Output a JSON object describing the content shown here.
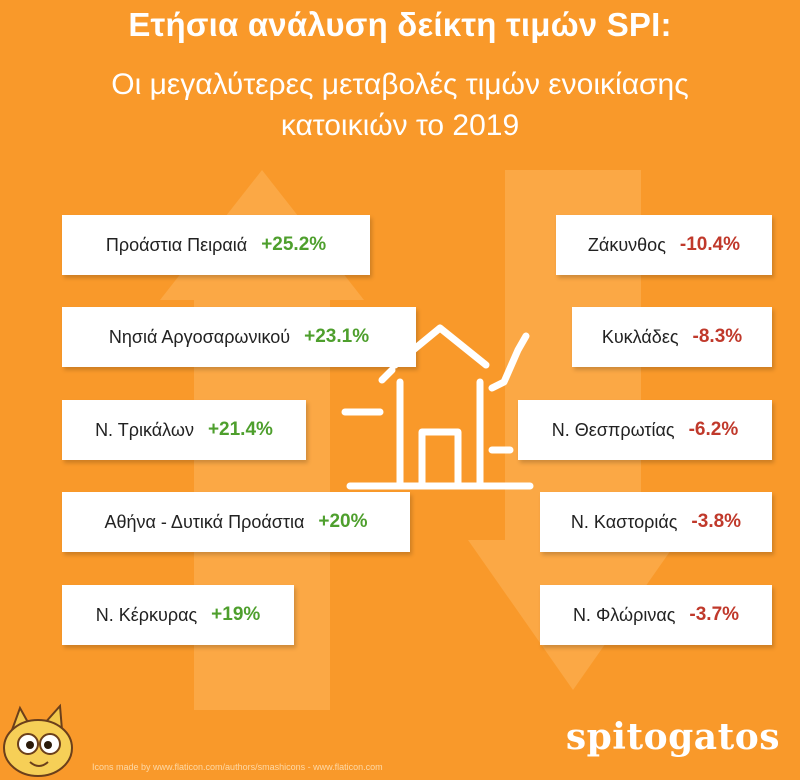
{
  "title": "Ετήσια ανάλυση δείκτη τιμών SPI:",
  "subtitle_line1": "Οι μεγαλύτερες μεταβολές τιμών ενοικίασης",
  "subtitle_line2": "κατοικιών το 2019",
  "increases": [
    {
      "name": "Προάστια Πειραιά",
      "change": "+25.2%"
    },
    {
      "name": "Νησιά Αργοσαρωνικού",
      "change": "+23.1%"
    },
    {
      "name": "Ν. Τρικάλων",
      "change": "+21.4%"
    },
    {
      "name": "Αθήνα - Δυτικά Προάστια",
      "change": "+20%"
    },
    {
      "name": "Ν. Κέρκυρας",
      "change": "+19%"
    }
  ],
  "decreases": [
    {
      "name": "Ζάκυνθος",
      "change": "-10.4%"
    },
    {
      "name": "Κυκλάδες",
      "change": "-8.3%"
    },
    {
      "name": "Ν. Θεσπρωτίας",
      "change": "-6.2%"
    },
    {
      "name": "Ν. Καστοριάς",
      "change": "-3.8%"
    },
    {
      "name": "Ν. Φλώρινας",
      "change": "-3.7%"
    }
  ],
  "brand": "spitogatos",
  "credit": "Icons made by www.flaticon.com/authors/smashicons - www.flaticon.com",
  "colors": {
    "background": "#F9992A",
    "positive": "#4E9F2D",
    "negative": "#C0392B"
  },
  "icons": [
    "house-chart-icon",
    "cat-mascot-icon",
    "arrow-up-icon",
    "arrow-down-icon"
  ]
}
